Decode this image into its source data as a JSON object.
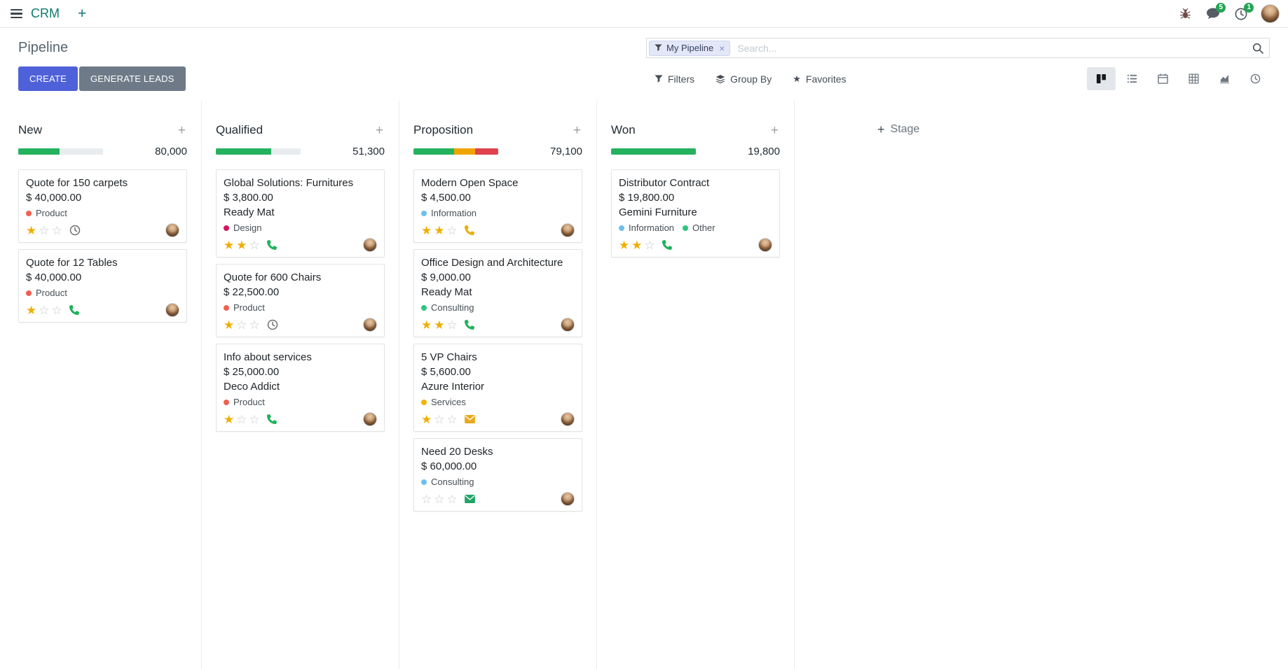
{
  "colors": {
    "brand": "#0e7a6f",
    "primary": "#4f61d9",
    "secondary": "#6e7a87",
    "badge": "#23a455",
    "star": "#f0ad00"
  },
  "navbar": {
    "app_name": "CRM",
    "messages_badge": "5",
    "activities_badge": "1"
  },
  "control_panel": {
    "title": "Pipeline",
    "create_label": "CREATE",
    "generate_leads_label": "GENERATE LEADS",
    "filters_label": "Filters",
    "group_by_label": "Group By",
    "favorites_label": "Favorites",
    "search": {
      "facet_label": "My Pipeline",
      "placeholder": "Search..."
    },
    "view_switcher": [
      {
        "name": "kanban",
        "active": true
      },
      {
        "name": "list",
        "active": false
      },
      {
        "name": "calendar",
        "active": false
      },
      {
        "name": "pivot",
        "active": false
      },
      {
        "name": "graph",
        "active": false
      },
      {
        "name": "activity",
        "active": false
      }
    ]
  },
  "board": {
    "add_stage_label": "Stage",
    "columns": [
      {
        "name": "New",
        "total": "80,000",
        "progress": [
          {
            "color": "#24b25f",
            "pct": 49
          },
          {
            "color": "#e9ecef",
            "pct": 51
          }
        ],
        "cards": [
          {
            "title": "Quote for 150 carpets",
            "amount": "$ 40,000.00",
            "partner": "",
            "tags": [
              {
                "label": "Product",
                "color": "#f06050"
              }
            ],
            "stars": 1,
            "activity": {
              "type": "clock",
              "color": "#6e6e6e"
            }
          },
          {
            "title": "Quote for 12 Tables",
            "amount": "$ 40,000.00",
            "partner": "",
            "tags": [
              {
                "label": "Product",
                "color": "#f06050"
              }
            ],
            "stars": 1,
            "activity": {
              "type": "phone",
              "color": "#1fb25a"
            }
          }
        ]
      },
      {
        "name": "Qualified",
        "total": "51,300",
        "progress": [
          {
            "color": "#24b25f",
            "pct": 65
          },
          {
            "color": "#e9ecef",
            "pct": 35
          }
        ],
        "cards": [
          {
            "title": "Global Solutions: Furnitures",
            "amount": "$ 3,800.00",
            "partner": "Ready Mat",
            "tags": [
              {
                "label": "Design",
                "color": "#d6145f"
              }
            ],
            "stars": 2,
            "activity": {
              "type": "phone",
              "color": "#1fb25a"
            }
          },
          {
            "title": "Quote for 600 Chairs",
            "amount": "$ 22,500.00",
            "partner": "",
            "tags": [
              {
                "label": "Product",
                "color": "#f06050"
              }
            ],
            "stars": 1,
            "activity": {
              "type": "clock",
              "color": "#6e6e6e"
            }
          },
          {
            "title": "Info about services",
            "amount": "$ 25,000.00",
            "partner": "Deco Addict",
            "tags": [
              {
                "label": "Product",
                "color": "#f06050"
              }
            ],
            "stars": 1,
            "activity": {
              "type": "phone",
              "color": "#1fb25a"
            }
          }
        ]
      },
      {
        "name": "Proposition",
        "total": "79,100",
        "progress": [
          {
            "color": "#24b25f",
            "pct": 48
          },
          {
            "color": "#efa500",
            "pct": 25
          },
          {
            "color": "#e0434e",
            "pct": 27
          }
        ],
        "cards": [
          {
            "title": "Modern Open Space",
            "amount": "$ 4,500.00",
            "partner": "",
            "tags": [
              {
                "label": "Information",
                "color": "#6cc1ed"
              }
            ],
            "stars": 2,
            "activity": {
              "type": "phone",
              "color": "#e8b007"
            }
          },
          {
            "title": "Office Design and Architecture",
            "amount": "$ 9,000.00",
            "partner": "Ready Mat",
            "tags": [
              {
                "label": "Consulting",
                "color": "#30c381"
              }
            ],
            "stars": 2,
            "activity": {
              "type": "phone",
              "color": "#1fb25a"
            }
          },
          {
            "title": "5 VP Chairs",
            "amount": "$ 5,600.00",
            "partner": "Azure Interior",
            "tags": [
              {
                "label": "Services",
                "color": "#f0b400"
              }
            ],
            "stars": 1,
            "activity": {
              "type": "envelope",
              "color": "#e8a91d"
            }
          },
          {
            "title": "Need 20 Desks",
            "amount": "$ 60,000.00",
            "partner": "",
            "tags": [
              {
                "label": "Consulting",
                "color": "#6cc1ed"
              }
            ],
            "stars": 0,
            "activity": {
              "type": "envelope",
              "color": "#21a567"
            }
          }
        ]
      },
      {
        "name": "Won",
        "total": "19,800",
        "progress": [
          {
            "color": "#24b25f",
            "pct": 100
          }
        ],
        "cards": [
          {
            "title": "Distributor Contract",
            "amount": "$ 19,800.00",
            "partner": "Gemini Furniture",
            "tags": [
              {
                "label": "Information",
                "color": "#6cc1ed"
              },
              {
                "label": "Other",
                "color": "#30c381"
              }
            ],
            "stars": 2,
            "activity": {
              "type": "phone",
              "color": "#1fb25a"
            }
          }
        ]
      }
    ]
  }
}
